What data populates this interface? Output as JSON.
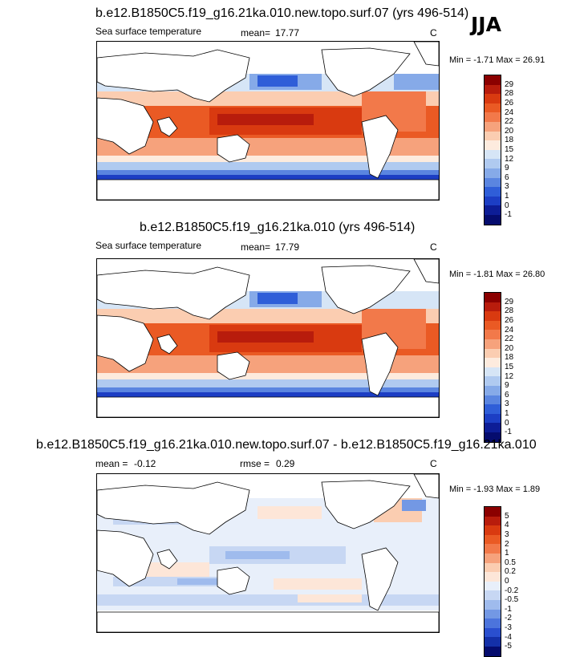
{
  "season": "JJA",
  "panels": [
    {
      "title": "b.e12.B1850C5.f19_g16.21ka.010.new.topo.surf.07 (yrs 496-514)",
      "subtitle": "Sea surface temperature",
      "stat_label": "mean=",
      "stat_value": "17.77",
      "units": "C",
      "min_label": "Min =",
      "min_value": "-1.71",
      "max_label": "Max =",
      "max_value": "26.91",
      "levels": [
        "29",
        "28",
        "26",
        "24",
        "22",
        "20",
        "18",
        "15",
        "12",
        "9",
        "6",
        "3",
        "1",
        "0",
        "-1"
      ]
    },
    {
      "title": "b.e12.B1850C5.f19_g16.21ka.010 (yrs 496-514)",
      "subtitle": "Sea surface temperature",
      "stat_label": "mean=",
      "stat_value": "17.79",
      "units": "C",
      "min_label": "Min =",
      "min_value": "-1.81",
      "max_label": "Max =",
      "max_value": "26.80",
      "levels": [
        "29",
        "28",
        "26",
        "24",
        "22",
        "20",
        "18",
        "15",
        "12",
        "9",
        "6",
        "3",
        "1",
        "0",
        "-1"
      ]
    },
    {
      "title": "b.e12.B1850C5.f19_g16.21ka.010.new.topo.surf.07 - b.e12.B1850C5.f19_g16.21ka.010",
      "subtitle": "",
      "stat_label": "mean =",
      "stat_value": "-0.12",
      "rmse_label": "rmse =",
      "rmse_value": "0.29",
      "units": "C",
      "min_label": "Min =",
      "min_value": "-1.93",
      "max_label": "Max =",
      "max_value": "1.89",
      "levels": [
        "5",
        "4",
        "3",
        "2",
        "1",
        "0.5",
        "0.2",
        "0",
        "-0.2",
        "-0.5",
        "-1",
        "-2",
        "-3",
        "-4",
        "-5"
      ]
    }
  ],
  "colors": {
    "sst_scale": [
      "#8b0000",
      "#b81c0c",
      "#d93a10",
      "#ea5a24",
      "#f2794a",
      "#f6a27c",
      "#fbcdb1",
      "#fdebde",
      "#d6e5f6",
      "#b0caf0",
      "#86aae8",
      "#5a85e0",
      "#2f5ed8",
      "#1c3ec4",
      "#0d1d96",
      "#050c6e"
    ],
    "diff_scale": [
      "#8b0000",
      "#b81c0c",
      "#d93a10",
      "#ea5a24",
      "#f2794a",
      "#f6a27c",
      "#fbcdb1",
      "#fde6d8",
      "#e8effa",
      "#c7d7f3",
      "#9fbbed",
      "#7398e4",
      "#4c74dc",
      "#2a4fcf",
      "#1430a8",
      "#050c6e"
    ]
  }
}
